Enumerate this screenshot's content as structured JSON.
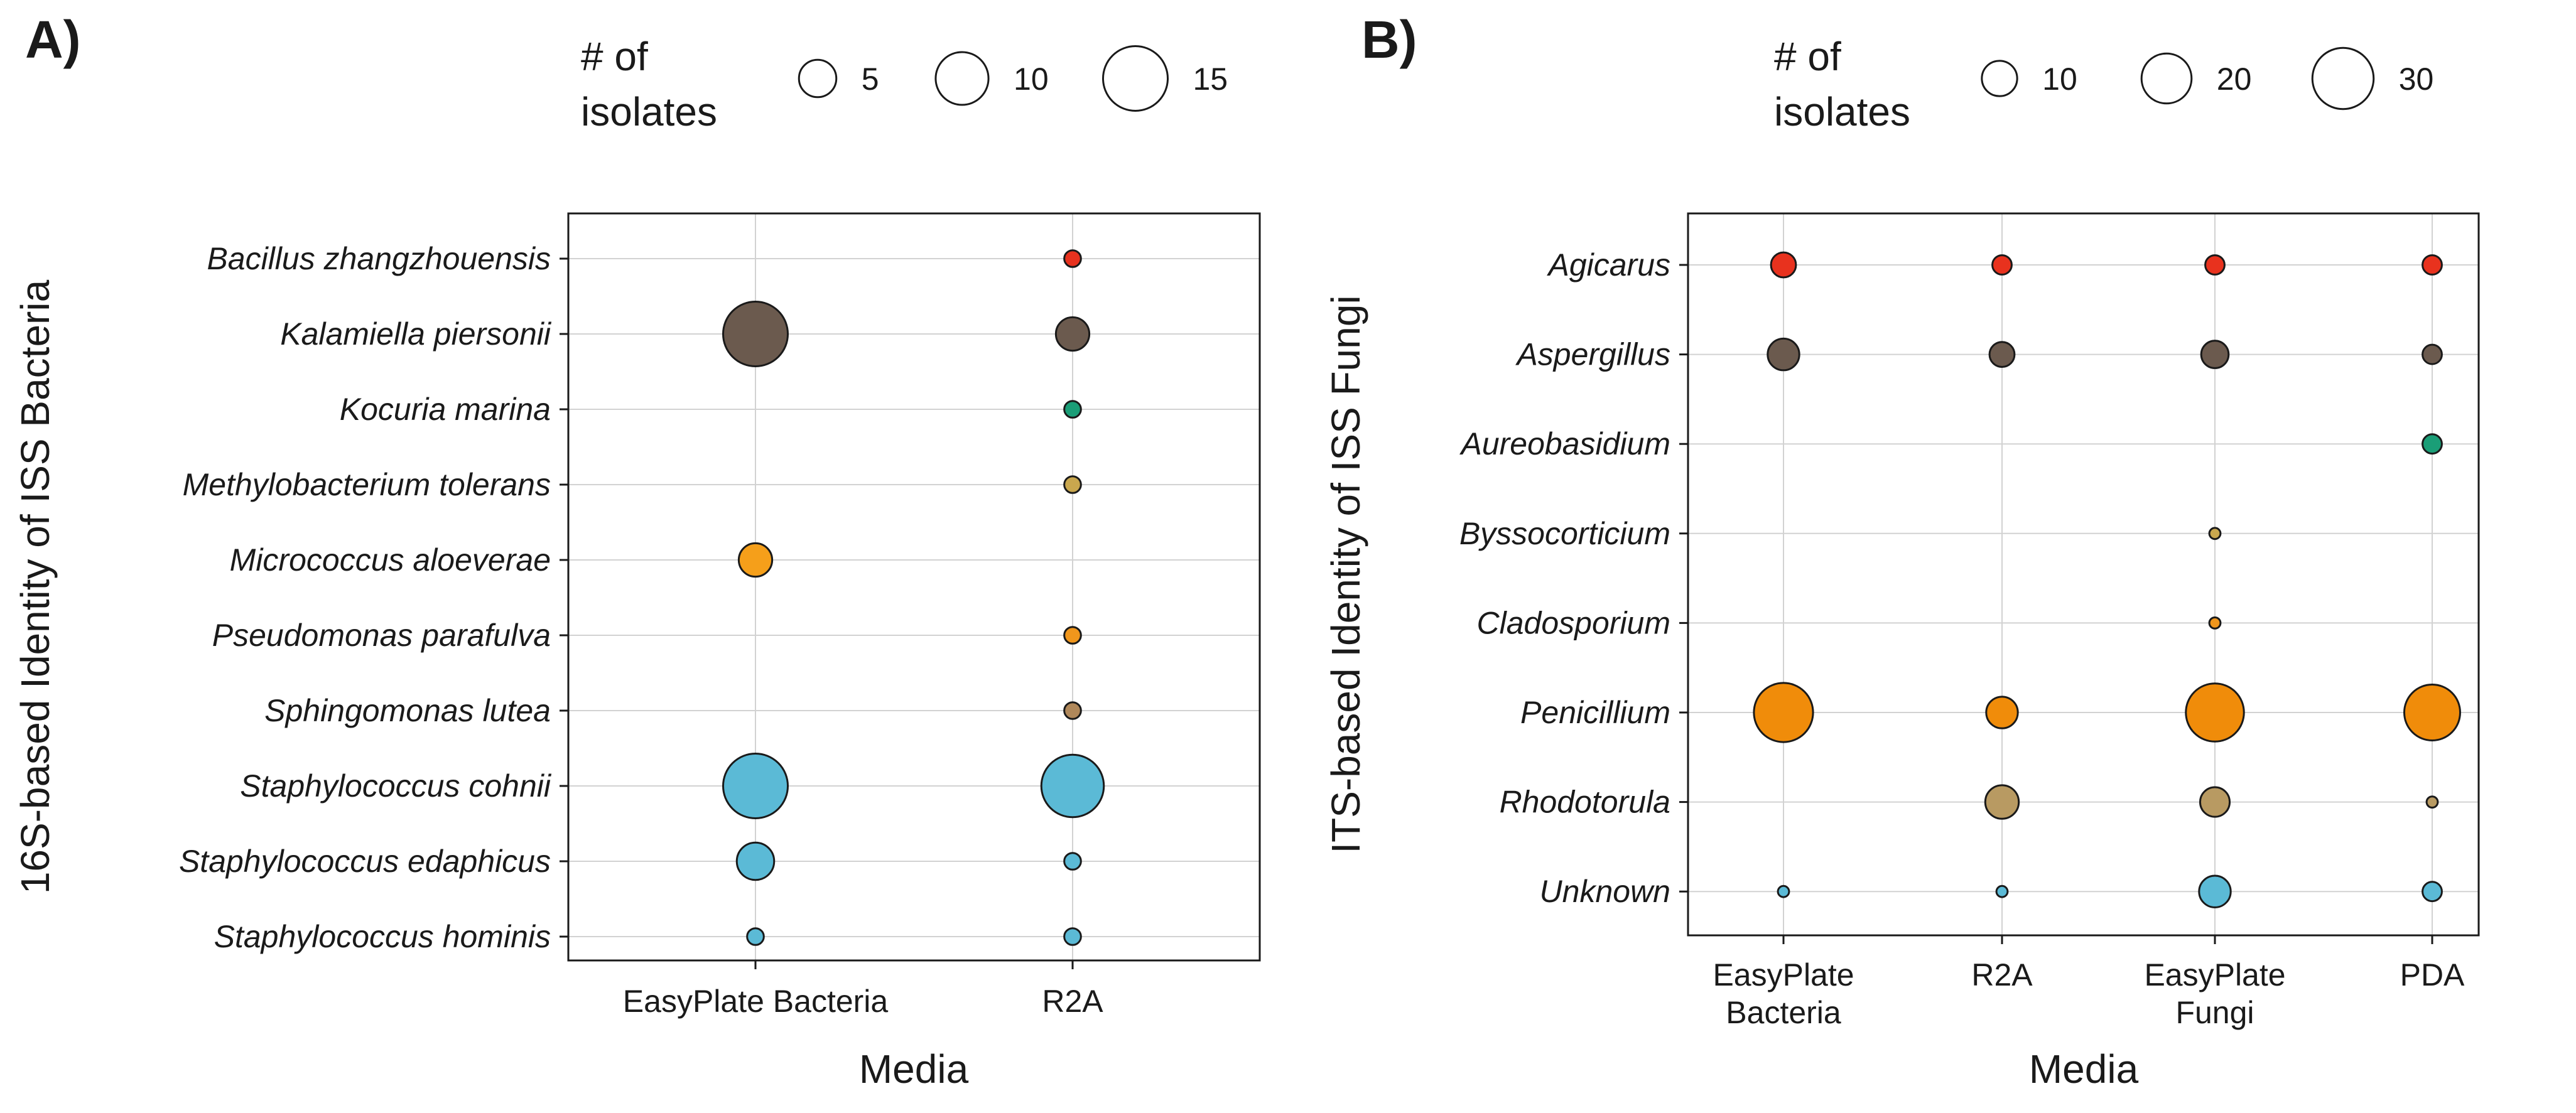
{
  "chart_data": [
    {
      "type": "scatter",
      "panel_label": "A)",
      "xlabel": "Media",
      "ylabel": "16S-based Identity of ISS Bacteria",
      "categories_x": [
        "EasyPlate Bacteria",
        "R2A"
      ],
      "categories_y": [
        "Bacillus zhangzhouensis",
        "Kalamiella piersonii",
        "Kocuria marina",
        "Methylobacterium tolerans",
        "Micrococcus aloeverae",
        "Pseudomonas parafulva",
        "Sphingomonas lutea",
        "Staphylococcus cohnii",
        "Staphylococcus edaphicus",
        "Staphylococcus hominis"
      ],
      "size_legend": {
        "title_line1": "# of",
        "title_line2": "isolates",
        "values": [
          5,
          10,
          15
        ],
        "labels": [
          "5",
          "10",
          "15"
        ],
        "max": 15
      },
      "points": [
        {
          "x": "R2A",
          "y": "Bacillus zhangzhouensis",
          "n": 1,
          "color": "#e8321e"
        },
        {
          "x": "EasyPlate Bacteria",
          "y": "Kalamiella piersonii",
          "n": 15,
          "color": "#6b5a4e"
        },
        {
          "x": "R2A",
          "y": "Kalamiella piersonii",
          "n": 4,
          "color": "#6b5a4e"
        },
        {
          "x": "R2A",
          "y": "Kocuria marina",
          "n": 1,
          "color": "#1a9e77"
        },
        {
          "x": "R2A",
          "y": "Methylobacterium tolerans",
          "n": 1,
          "color": "#c9a74e"
        },
        {
          "x": "EasyPlate Bacteria",
          "y": "Micrococcus aloeverae",
          "n": 4,
          "color": "#f59f1a"
        },
        {
          "x": "R2A",
          "y": "Pseudomonas parafulva",
          "n": 1,
          "color": "#f0961c"
        },
        {
          "x": "R2A",
          "y": "Sphingomonas lutea",
          "n": 1,
          "color": "#b0885a"
        },
        {
          "x": "EasyPlate Bacteria",
          "y": "Staphylococcus cohnii",
          "n": 15,
          "color": "#5bbad6"
        },
        {
          "x": "R2A",
          "y": "Staphylococcus cohnii",
          "n": 14,
          "color": "#5bbad6"
        },
        {
          "x": "EasyPlate Bacteria",
          "y": "Staphylococcus edaphicus",
          "n": 5,
          "color": "#5bbad6"
        },
        {
          "x": "R2A",
          "y": "Staphylococcus edaphicus",
          "n": 1,
          "color": "#5bbad6"
        },
        {
          "x": "EasyPlate Bacteria",
          "y": "Staphylococcus hominis",
          "n": 1,
          "color": "#5bbad6"
        },
        {
          "x": "R2A",
          "y": "Staphylococcus hominis",
          "n": 1,
          "color": "#5bbad6"
        }
      ]
    },
    {
      "type": "scatter",
      "panel_label": "B)",
      "xlabel": "Media",
      "ylabel": "ITS-based Identity of ISS Fungi",
      "categories_x": [
        [
          "EasyPlate",
          "Bacteria"
        ],
        [
          "R2A"
        ],
        [
          "EasyPlate",
          "Fungi"
        ],
        [
          "PDA"
        ]
      ],
      "categories_y": [
        "Agicarus",
        "Aspergillus",
        "Aureobasidium",
        "Byssocorticium",
        "Cladosporium",
        "Penicillium",
        "Rhodotorula",
        "Unknown"
      ],
      "size_legend": {
        "title_line1": "# of",
        "title_line2": "isolates",
        "values": [
          10,
          20,
          30
        ],
        "labels": [
          "10",
          "20",
          "30"
        ],
        "max": 30
      },
      "points": [
        {
          "x": 0,
          "y": "Agicarus",
          "n": 5,
          "color": "#e8321e"
        },
        {
          "x": 1,
          "y": "Agicarus",
          "n": 3,
          "color": "#e8321e"
        },
        {
          "x": 2,
          "y": "Agicarus",
          "n": 3,
          "color": "#e8321e"
        },
        {
          "x": 3,
          "y": "Agicarus",
          "n": 3,
          "color": "#e8321e"
        },
        {
          "x": 0,
          "y": "Aspergillus",
          "n": 8,
          "color": "#6b5a4e"
        },
        {
          "x": 1,
          "y": "Aspergillus",
          "n": 5,
          "color": "#6b5a4e"
        },
        {
          "x": 2,
          "y": "Aspergillus",
          "n": 6,
          "color": "#6b5a4e"
        },
        {
          "x": 3,
          "y": "Aspergillus",
          "n": 3,
          "color": "#6b5a4e"
        },
        {
          "x": 3,
          "y": "Aureobasidium",
          "n": 3,
          "color": "#1a9e77"
        },
        {
          "x": 2,
          "y": "Byssocorticium",
          "n": 1,
          "color": "#c9a74e"
        },
        {
          "x": 2,
          "y": "Cladosporium",
          "n": 1,
          "color": "#f0961c"
        },
        {
          "x": 0,
          "y": "Penicillium",
          "n": 28,
          "color": "#f08c0a"
        },
        {
          "x": 1,
          "y": "Penicillium",
          "n": 8,
          "color": "#f08c0a"
        },
        {
          "x": 2,
          "y": "Penicillium",
          "n": 27,
          "color": "#f08c0a"
        },
        {
          "x": 3,
          "y": "Penicillium",
          "n": 25,
          "color": "#f08c0a"
        },
        {
          "x": 1,
          "y": "Rhodotorula",
          "n": 9,
          "color": "#b89a62"
        },
        {
          "x": 2,
          "y": "Rhodotorula",
          "n": 7,
          "color": "#b89a62"
        },
        {
          "x": 3,
          "y": "Rhodotorula",
          "n": 1,
          "color": "#b89a62"
        },
        {
          "x": 0,
          "y": "Unknown",
          "n": 1,
          "color": "#5bbad6"
        },
        {
          "x": 1,
          "y": "Unknown",
          "n": 1,
          "color": "#5bbad6"
        },
        {
          "x": 2,
          "y": "Unknown",
          "n": 8,
          "color": "#5bbad6"
        },
        {
          "x": 3,
          "y": "Unknown",
          "n": 3,
          "color": "#5bbad6"
        }
      ]
    }
  ]
}
